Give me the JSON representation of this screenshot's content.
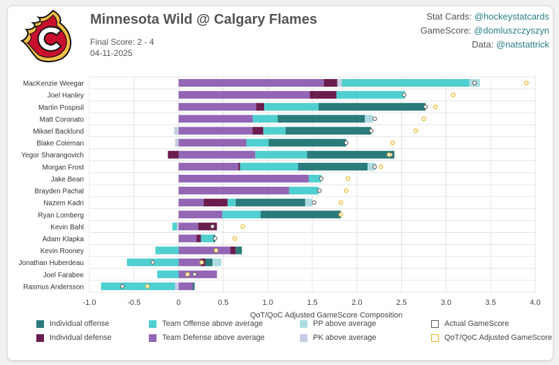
{
  "header": {
    "title": "Minnesota Wild @ Calgary Flames",
    "final_score": "Final Score: 2 - 4",
    "date": "04-11-2025"
  },
  "credits": [
    {
      "label": "Stat Cards: ",
      "handle": "@hockeystatcards"
    },
    {
      "label": "GameScore: ",
      "handle": "@domluszczyszyn"
    },
    {
      "label": "Data: ",
      "handle": "@natstattrick"
    }
  ],
  "colors": {
    "ind_off": "#2a7b7b",
    "team_off": "#4fcfcf",
    "pp": "#acdce0",
    "ind_def": "#6b1d4e",
    "team_def": "#9366b5",
    "pk": "#c5cde2",
    "actual_marker": "#666666",
    "adjusted_marker": "#e8b420",
    "logo_red": "#c8102e",
    "logo_yellow": "#f1be48"
  },
  "logo": {
    "name": "calgary-flames-logo"
  },
  "chart_data": {
    "type": "bar",
    "orientation": "horizontal",
    "stacked": true,
    "xlabel": "QoT/QoC Adjusted GameScore Composition",
    "xlim": [
      -1.0,
      4.0
    ],
    "xticks": [
      -1.0,
      -0.5,
      0,
      0.5,
      1.0,
      1.5,
      2.0,
      2.5,
      3.0,
      3.5,
      4.0
    ],
    "xtick_labels": [
      "-1.0",
      "-0.5",
      "0",
      "0.5",
      "1.0",
      "1.5",
      "2.0",
      "2.5",
      "3.0",
      "3.5",
      "4.0"
    ],
    "grid": true,
    "legend_position": "bottom",
    "legend": [
      {
        "key": "ind_off",
        "label": "Individual offense",
        "kind": "bar"
      },
      {
        "key": "team_off",
        "label": "Team Offense above average",
        "kind": "bar"
      },
      {
        "key": "pp",
        "label": "PP above average",
        "kind": "bar"
      },
      {
        "key": "actual",
        "label": "Actual GameScore",
        "kind": "marker"
      },
      {
        "key": "ind_def",
        "label": "Individual defense",
        "kind": "bar"
      },
      {
        "key": "team_def",
        "label": "Team Defense above average",
        "kind": "bar"
      },
      {
        "key": "pk",
        "label": "PK above average",
        "kind": "bar"
      },
      {
        "key": "adjusted",
        "label": "QoT/QoC Adjusted GameScore",
        "kind": "marker"
      }
    ],
    "players": [
      {
        "name": "MacKenzie Weegar",
        "team_def": 1.63,
        "ind_def": 0.15,
        "pk": 0.05,
        "team_off": 1.43,
        "ind_off": 0.0,
        "pp": 0.12,
        "actual": 3.32,
        "adjusted": 3.9
      },
      {
        "name": "Joel Hanley",
        "team_def": 1.47,
        "ind_def": 0.3,
        "pk": 0.0,
        "team_off": 0.77,
        "ind_off": 0.0,
        "pp": 0.0,
        "actual": 2.53,
        "adjusted": 3.08
      },
      {
        "name": "Martin Pospisil",
        "team_def": 0.87,
        "ind_def": 0.09,
        "pk": 0.0,
        "team_off": 0.61,
        "ind_off": 1.2,
        "pp": 0.0,
        "actual": 2.77,
        "adjusted": 2.88
      },
      {
        "name": "Matt Coronato",
        "team_def": 0.83,
        "ind_def": 0.0,
        "pk": 0.0,
        "team_off": 0.28,
        "ind_off": 0.98,
        "pp": 0.09,
        "actual": 2.2,
        "adjusted": 2.75
      },
      {
        "name": "Mikael Backlund",
        "team_def": 0.83,
        "ind_def": 0.12,
        "pk": -0.05,
        "team_off": 0.25,
        "ind_off": 0.96,
        "pp": 0.0,
        "actual": 2.16,
        "adjusted": 2.66
      },
      {
        "name": "Blake Coleman",
        "team_def": 0.76,
        "ind_def": 0.0,
        "pk": -0.04,
        "team_off": 0.25,
        "ind_off": 0.87,
        "pp": 0.0,
        "actual": 1.88,
        "adjusted": 2.4
      },
      {
        "name": "Yegor Sharangovich",
        "team_def": 0.86,
        "ind_def": -0.12,
        "pk": 0.0,
        "team_off": 0.58,
        "ind_off": 0.98,
        "pp": 0.0,
        "actual": 2.38,
        "adjusted": 2.36
      },
      {
        "name": "Morgan Frost",
        "team_def": 0.67,
        "ind_def": 0.02,
        "pk": 0.0,
        "team_off": 0.65,
        "ind_off": 0.78,
        "pp": 0.09,
        "actual": 2.2,
        "adjusted": 2.27
      },
      {
        "name": "Jake Bean",
        "team_def": 1.46,
        "ind_def": 0.0,
        "pk": 0.0,
        "team_off": 0.14,
        "ind_off": 0.0,
        "pp": 0.0,
        "actual": 1.6,
        "adjusted": 1.9
      },
      {
        "name": "Brayden Pachal",
        "team_def": 1.24,
        "ind_def": 0.0,
        "pk": 0.0,
        "team_off": 0.33,
        "ind_off": 0.0,
        "pp": 0.0,
        "actual": 1.58,
        "adjusted": 1.88
      },
      {
        "name": "Nazem Kadri",
        "team_def": 0.28,
        "ind_def": 0.27,
        "pk": 0.0,
        "team_off": 0.09,
        "ind_off": 0.78,
        "pp": 0.08,
        "actual": 1.52,
        "adjusted": 1.82
      },
      {
        "name": "Ryan Lomberg",
        "team_def": 0.49,
        "ind_def": 0.0,
        "pk": 0.0,
        "team_off": 0.43,
        "ind_off": 0.9,
        "pp": 0.0,
        "actual": 1.81,
        "adjusted": 1.82
      },
      {
        "name": "Kevin Bahl",
        "team_def": 0.22,
        "ind_def": 0.21,
        "pk": -0.02,
        "team_off": -0.05,
        "ind_off": 0.0,
        "pp": 0.0,
        "actual": 0.38,
        "adjusted": 0.72
      },
      {
        "name": "Adam Klapka",
        "team_def": 0.2,
        "ind_def": 0.05,
        "pk": 0.0,
        "team_off": 0.14,
        "ind_off": 0.02,
        "pp": 0.0,
        "actual": 0.41,
        "adjusted": 0.63
      },
      {
        "name": "Kevin Rooney",
        "team_def": 0.58,
        "ind_def": 0.06,
        "pk": 0.0,
        "team_off": -0.26,
        "ind_off": 0.07,
        "pp": 0.0,
        "actual": 0.41,
        "adjusted": 0.42
      },
      {
        "name": "Jonathan Huberdeau",
        "team_def": 0.25,
        "ind_def": 0.05,
        "pk": 0.0,
        "team_off": -0.58,
        "ind_off": 0.08,
        "pp": 0.1,
        "actual": -0.29,
        "adjusted": 0.26
      },
      {
        "name": "Joel Farabee",
        "team_def": 0.43,
        "ind_def": 0.0,
        "pk": 0.0,
        "team_off": -0.24,
        "ind_off": 0.0,
        "pp": 0.0,
        "actual": 0.18,
        "adjusted": 0.1
      },
      {
        "name": "Rasmus Andersson",
        "team_def": 0.16,
        "ind_def": 0.0,
        "pk": -0.04,
        "team_off": -0.83,
        "ind_off": 0.02,
        "pp": 0.0,
        "actual": -0.63,
        "adjusted": -0.35
      }
    ]
  }
}
